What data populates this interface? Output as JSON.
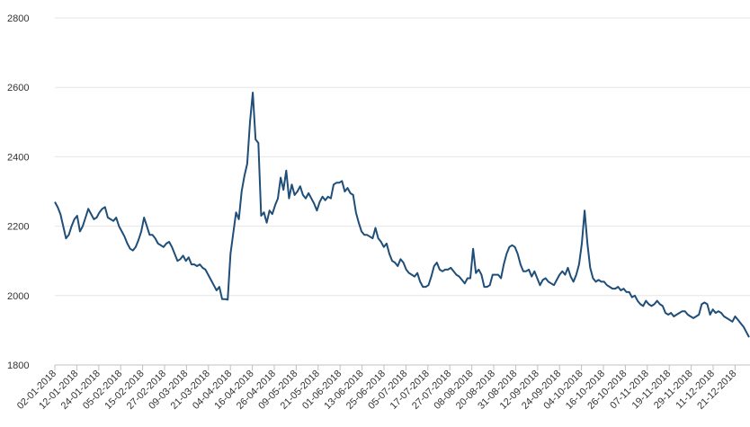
{
  "chart_data": {
    "type": "line",
    "title": "",
    "xlabel": "",
    "ylabel": "",
    "ylim": [
      1800,
      2800
    ],
    "yticks": [
      1800,
      2000,
      2200,
      2400,
      2600,
      2800
    ],
    "grid": true,
    "legend": "none",
    "line_color": "#1f4e79",
    "x_ticks": [
      "02-01-2018",
      "12-01-2018",
      "24-01-2018",
      "05-02-2018",
      "15-02-2018",
      "27-02-2018",
      "09-03-2018",
      "21-03-2018",
      "04-04-2018",
      "16-04-2018",
      "26-04-2018",
      "09-05-2018",
      "21-05-2018",
      "01-06-2018",
      "13-06-2018",
      "25-06-2018",
      "05-07-2018",
      "17-07-2018",
      "27-07-2018",
      "08-08-2018",
      "20-08-2018",
      "31-08-2018",
      "12-09-2018",
      "24-09-2018",
      "04-10-2018",
      "16-10-2018",
      "26-10-2018",
      "07-11-2018",
      "19-11-2018",
      "29-11-2018",
      "11-12-2018",
      "21-12-2018"
    ],
    "series": [
      {
        "values": [
          2270,
          2255,
          2235,
          2200,
          2165,
          2175,
          2200,
          2220,
          2230,
          2185,
          2200,
          2225,
          2250,
          2235,
          2220,
          2225,
          2240,
          2250,
          2255,
          2225,
          2220,
          2215,
          2225,
          2200,
          2185,
          2170,
          2150,
          2135,
          2130,
          2140,
          2160,
          2185,
          2225,
          2200,
          2175,
          2175,
          2165,
          2150,
          2145,
          2140,
          2150,
          2155,
          2140,
          2120,
          2100,
          2105,
          2115,
          2100,
          2110,
          2090,
          2090,
          2085,
          2090,
          2080,
          2075,
          2060,
          2045,
          2030,
          2015,
          2025,
          1990,
          1990,
          1988,
          2120,
          2180,
          2240,
          2220,
          2300,
          2345,
          2380,
          2500,
          2585,
          2450,
          2440,
          2230,
          2240,
          2210,
          2245,
          2235,
          2260,
          2280,
          2340,
          2305,
          2360,
          2280,
          2320,
          2290,
          2300,
          2315,
          2290,
          2280,
          2295,
          2280,
          2265,
          2245,
          2270,
          2285,
          2275,
          2285,
          2280,
          2320,
          2325,
          2325,
          2330,
          2300,
          2310,
          2295,
          2290,
          2240,
          2210,
          2185,
          2175,
          2175,
          2170,
          2165,
          2195,
          2165,
          2155,
          2140,
          2150,
          2120,
          2100,
          2095,
          2085,
          2105,
          2095,
          2075,
          2065,
          2060,
          2055,
          2065,
          2040,
          2025,
          2025,
          2030,
          2055,
          2085,
          2095,
          2075,
          2070,
          2075,
          2075,
          2080,
          2070,
          2060,
          2055,
          2045,
          2035,
          2050,
          2050,
          2135,
          2065,
          2075,
          2060,
          2025,
          2025,
          2030,
          2060,
          2060,
          2060,
          2050,
          2090,
          2120,
          2140,
          2145,
          2140,
          2120,
          2090,
          2070,
          2070,
          2075,
          2055,
          2070,
          2050,
          2030,
          2045,
          2050,
          2040,
          2035,
          2030,
          2045,
          2060,
          2070,
          2060,
          2080,
          2055,
          2040,
          2060,
          2090,
          2150,
          2245,
          2150,
          2080,
          2050,
          2040,
          2045,
          2040,
          2040,
          2030,
          2025,
          2020,
          2020,
          2025,
          2015,
          2020,
          2010,
          2010,
          1995,
          2000,
          1985,
          1975,
          1970,
          1985,
          1975,
          1970,
          1975,
          1985,
          1975,
          1970,
          1950,
          1945,
          1950,
          1940,
          1945,
          1950,
          1955,
          1955,
          1945,
          1940,
          1935,
          1940,
          1945,
          1975,
          1980,
          1975,
          1945,
          1960,
          1950,
          1955,
          1950,
          1940,
          1935,
          1930,
          1925,
          1940,
          1930,
          1920,
          1910,
          1895,
          1880
        ]
      }
    ]
  }
}
